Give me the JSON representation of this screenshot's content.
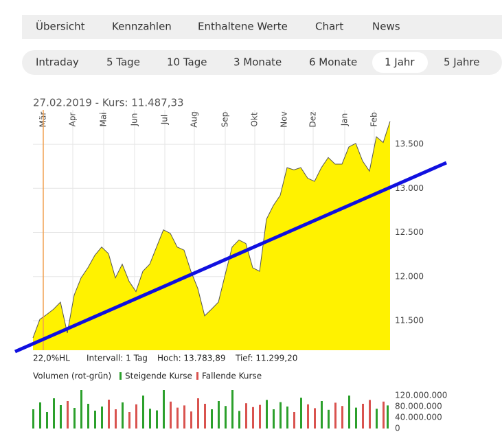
{
  "tabs": [
    "Übersicht",
    "Kennzahlen",
    "Enthaltene Werte",
    "Chart",
    "News"
  ],
  "periods": [
    "Intraday",
    "5 Tage",
    "10 Tage",
    "3 Monate",
    "6 Monate",
    "1 Jahr",
    "5 Jahre"
  ],
  "selected_period_index": 5,
  "stats": [
    "22,0%HL",
    "Intervall: 1 Tag",
    "Hoch: 13.783,89",
    "Tief: 11.299,20"
  ],
  "chart_data": [
    {
      "type": "area",
      "title": "27.02.2019  -  Kurs: 11.487,33",
      "color": "#fff200",
      "line_color": "#555555",
      "values": [
        11305,
        11515,
        11570,
        11630,
        11710,
        11360,
        11790,
        11985,
        12100,
        12240,
        12335,
        12260,
        11985,
        12140,
        11945,
        11830,
        12060,
        12140,
        12335,
        12530,
        12490,
        12335,
        12300,
        12060,
        11865,
        11555,
        11630,
        11710,
        12025,
        12335,
        12415,
        12375,
        12100,
        12060,
        12650,
        12805,
        12920,
        13235,
        13210,
        13235,
        13115,
        13080,
        13235,
        13350,
        13275,
        13275,
        13470,
        13510,
        13310,
        13195,
        13585,
        13520,
        13760
      ],
      "xlim": [
        0,
        52
      ],
      "xticks": [
        {
          "value": 1.5,
          "label": "Mär"
        },
        {
          "value": 5.8,
          "label": "Apr"
        },
        {
          "value": 10.3,
          "label": "Mai"
        },
        {
          "value": 14.8,
          "label": "Jun"
        },
        {
          "value": 19.2,
          "label": "Jul"
        },
        {
          "value": 23.5,
          "label": "Aug"
        },
        {
          "value": 28,
          "label": "Sep"
        },
        {
          "value": 32.3,
          "label": "Okt"
        },
        {
          "value": 36.6,
          "label": "Nov"
        },
        {
          "value": 40.8,
          "label": "Dez"
        },
        {
          "value": 45.4,
          "label": "Jan"
        },
        {
          "value": 49.7,
          "label": "Feb"
        }
      ],
      "ylim": [
        11165,
        13890
      ],
      "yticks": [
        {
          "value": 11500,
          "label": "11.500"
        },
        {
          "value": 12000,
          "label": "12.000"
        },
        {
          "value": 12500,
          "label": "12.500"
        },
        {
          "value": 13000,
          "label": "13.000"
        },
        {
          "value": 13500,
          "label": "13.500"
        }
      ],
      "grid": true
    },
    {
      "type": "bar",
      "title": "Volumen (rot-grün)",
      "series": [
        {
          "name": "Steigende Kurse",
          "color": "#2ca02c",
          "values": [
            70000000,
            95000000,
            60000000,
            110000000,
            85000000,
            null,
            75000000,
            140000000,
            90000000,
            65000000,
            80000000,
            null,
            null,
            95000000,
            null,
            null,
            120000000,
            72000000,
            66000000,
            140000000,
            null,
            null,
            null,
            null,
            null,
            null,
            70000000,
            100000000,
            82000000,
            140000000,
            64000000,
            null,
            null,
            null,
            104000000,
            70000000,
            96000000,
            80000000,
            null,
            112000000,
            null,
            null,
            100000000,
            68000000,
            null,
            null,
            120000000,
            76000000,
            null,
            null,
            72000000,
            null,
            84000000
          ]
        },
        {
          "name": "Fallende Kurse",
          "color": "#d9534f",
          "values": [
            null,
            null,
            null,
            null,
            null,
            100000000,
            null,
            null,
            null,
            null,
            null,
            105000000,
            70000000,
            null,
            60000000,
            88000000,
            null,
            null,
            null,
            null,
            98000000,
            76000000,
            84000000,
            62000000,
            110000000,
            90000000,
            null,
            null,
            null,
            null,
            null,
            92000000,
            78000000,
            86000000,
            null,
            null,
            null,
            null,
            60000000,
            null,
            88000000,
            74000000,
            null,
            null,
            94000000,
            82000000,
            null,
            null,
            90000000,
            104000000,
            null,
            98000000,
            null
          ]
        }
      ],
      "ylim": [
        0,
        140000000
      ],
      "yticks": [
        0,
        {
          "value": 40000000,
          "label": "40.000.000"
        },
        {
          "value": 80000000,
          "label": "80.000.000"
        },
        {
          "value": 120000000,
          "label": "120.000.000"
        }
      ]
    }
  ]
}
